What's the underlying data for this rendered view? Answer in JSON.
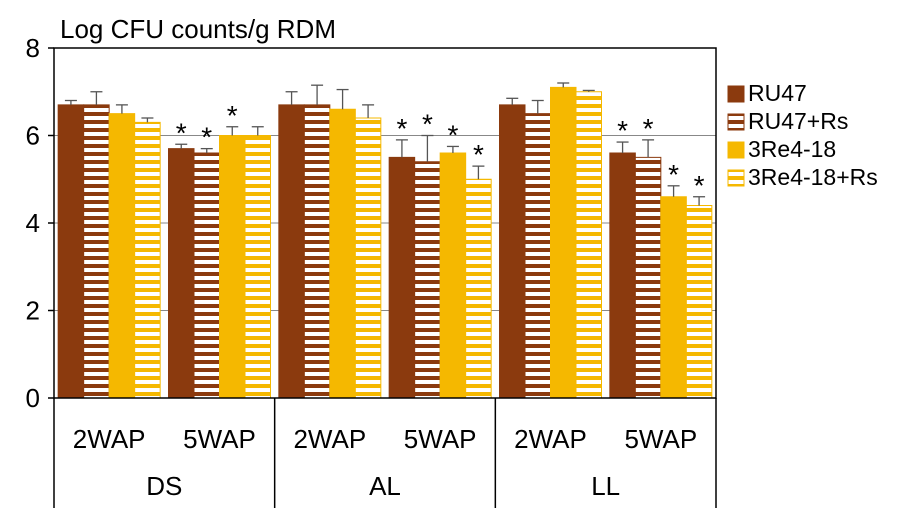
{
  "chart_data": {
    "type": "bar",
    "ylabel": "Log CFU counts/g RDM",
    "ylim": [
      0,
      8
    ],
    "yticks": [
      0,
      2,
      4,
      6,
      8
    ],
    "grid": true,
    "legend_position": "right",
    "groups": [
      "DS",
      "AL",
      "LL"
    ],
    "categories": [
      "2WAP",
      "5WAP",
      "2WAP",
      "5WAP",
      "2WAP",
      "5WAP"
    ],
    "series": [
      {
        "name": "RU47",
        "color": "#8B3A0E",
        "pattern": "solid",
        "values": [
          6.7,
          5.7,
          6.7,
          5.5,
          6.7,
          5.6
        ],
        "errors": [
          0.1,
          0.1,
          0.3,
          0.4,
          0.15,
          0.25
        ],
        "significant": [
          false,
          true,
          false,
          true,
          false,
          true
        ]
      },
      {
        "name": "RU47+Rs",
        "color": "#8B3A0E",
        "pattern": "striped",
        "values": [
          6.7,
          5.6,
          6.7,
          5.4,
          6.5,
          5.5
        ],
        "errors": [
          0.3,
          0.1,
          0.45,
          0.6,
          0.3,
          0.4
        ],
        "significant": [
          false,
          true,
          false,
          true,
          false,
          true
        ]
      },
      {
        "name": "3Re4-18",
        "color": "#F5B800",
        "pattern": "solid",
        "values": [
          6.5,
          6.0,
          6.6,
          5.6,
          7.1,
          4.6
        ],
        "errors": [
          0.2,
          0.2,
          0.45,
          0.15,
          0.1,
          0.25
        ],
        "significant": [
          false,
          true,
          false,
          true,
          false,
          true
        ]
      },
      {
        "name": "3Re4-18+Rs",
        "color": "#F5B800",
        "pattern": "striped",
        "values": [
          6.3,
          6.0,
          6.4,
          5.0,
          7.0,
          4.4
        ],
        "errors": [
          0.1,
          0.2,
          0.3,
          0.3,
          0.03,
          0.2
        ],
        "significant": [
          false,
          false,
          false,
          true,
          false,
          true
        ]
      }
    ],
    "significance_marker": "*"
  }
}
